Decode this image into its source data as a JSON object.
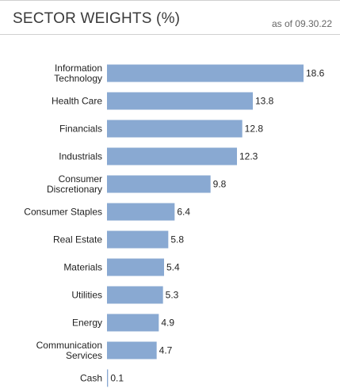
{
  "header": {
    "title": "SECTOR WEIGHTS (%)",
    "as_of": "as of 09.30.22"
  },
  "colors": {
    "bar": "#89a9d2"
  },
  "chart_data": {
    "type": "bar",
    "orientation": "horizontal",
    "title": "SECTOR WEIGHTS (%)",
    "categories": [
      [
        "Information",
        "Technology"
      ],
      [
        "Health Care"
      ],
      [
        "Financials"
      ],
      [
        "Industrials"
      ],
      [
        "Consumer",
        "Discretionary"
      ],
      [
        "Consumer Staples"
      ],
      [
        "Real Estate"
      ],
      [
        "Materials"
      ],
      [
        "Utilities"
      ],
      [
        "Energy"
      ],
      [
        "Communication",
        "Services"
      ],
      [
        "Cash"
      ]
    ],
    "values": [
      18.6,
      13.8,
      12.8,
      12.3,
      9.8,
      6.4,
      5.8,
      5.4,
      5.3,
      4.9,
      4.7,
      0.1
    ],
    "value_labels": [
      "18.6",
      "13.8",
      "12.8",
      "12.3",
      "9.8",
      "6.4",
      "5.8",
      "5.4",
      "5.3",
      "4.9",
      "4.7",
      "0.1"
    ],
    "xlim": [
      0,
      18.6
    ],
    "grid": false,
    "legend": "none"
  }
}
